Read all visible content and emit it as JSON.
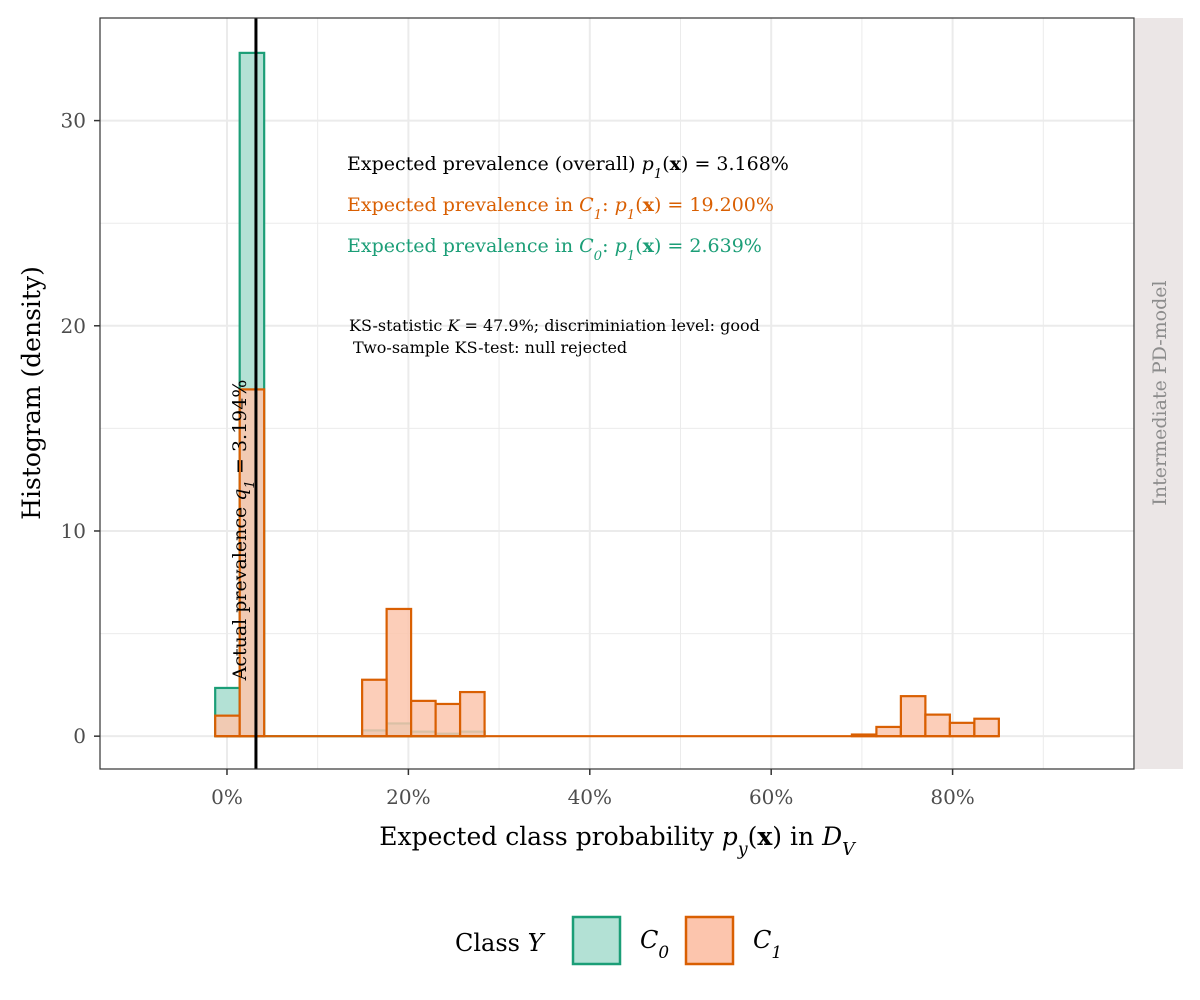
{
  "chart_data": {
    "type": "bar",
    "xlabel": "Expected class probability p_y(x) in D_V",
    "ylabel": "Histogram (density)",
    "xlim": [
      -0.14,
      1.0
    ],
    "ylim": [
      -1.6,
      35.0
    ],
    "x_ticks": [
      0,
      0.2,
      0.4,
      0.6,
      0.8
    ],
    "x_tick_labels": [
      "0%",
      "20%",
      "40%",
      "60%",
      "80%"
    ],
    "y_ticks": [
      0,
      10,
      20,
      30
    ],
    "y_tick_labels": [
      "0",
      "10",
      "20",
      "30"
    ],
    "grid": true,
    "legend_position": "bottom",
    "legend_title": "Class Y",
    "bin_width": 0.027,
    "series": [
      {
        "name": "C_0",
        "color": "#1b9e77",
        "fill": "#b3e1d5",
        "bins": [
          {
            "x0": -0.013,
            "x1": 0.014,
            "value": 2.35
          },
          {
            "x0": 0.014,
            "x1": 0.041,
            "value": 33.3
          },
          {
            "x0": 0.149,
            "x1": 0.176,
            "value": 0.28
          },
          {
            "x0": 0.176,
            "x1": 0.203,
            "value": 0.62
          },
          {
            "x0": 0.203,
            "x1": 0.23,
            "value": 0.22
          },
          {
            "x0": 0.23,
            "x1": 0.257,
            "value": 0.12
          },
          {
            "x0": 0.257,
            "x1": 0.284,
            "value": 0.22
          }
        ]
      },
      {
        "name": "C_1",
        "color": "#d95f02",
        "fill": "#fcc5ad",
        "bins": [
          {
            "x0": -0.013,
            "x1": 0.014,
            "value": 1.0
          },
          {
            "x0": 0.014,
            "x1": 0.041,
            "value": 16.9
          },
          {
            "x0": 0.149,
            "x1": 0.176,
            "value": 2.75
          },
          {
            "x0": 0.176,
            "x1": 0.203,
            "value": 6.2
          },
          {
            "x0": 0.203,
            "x1": 0.23,
            "value": 1.72
          },
          {
            "x0": 0.23,
            "x1": 0.257,
            "value": 1.57
          },
          {
            "x0": 0.257,
            "x1": 0.284,
            "value": 2.15
          },
          {
            "x0": 0.689,
            "x1": 0.716,
            "value": 0.08
          },
          {
            "x0": 0.716,
            "x1": 0.743,
            "value": 0.45
          },
          {
            "x0": 0.743,
            "x1": 0.77,
            "value": 1.95
          },
          {
            "x0": 0.77,
            "x1": 0.797,
            "value": 1.05
          },
          {
            "x0": 0.797,
            "x1": 0.824,
            "value": 0.65
          },
          {
            "x0": 0.824,
            "x1": 0.851,
            "value": 0.85
          }
        ]
      }
    ],
    "reference_line": {
      "x": 0.03194,
      "label": "Actual prevalence q_1 = 3.194%"
    },
    "annotations": [
      {
        "text": "Expected prevalence (overall) p_1(x) = 3.168%",
        "color": "#000000"
      },
      {
        "text": "Expected prevalence in C_1: p_1(x) = 19.200%",
        "color": "#d95f02"
      },
      {
        "text": "Expected prevalence in C_0: p_1(x) = 2.639%",
        "color": "#1b9e77"
      },
      {
        "text": "KS-statistic K = 47.9%; discriminiation level: good",
        "color": "#000000"
      },
      {
        "text": "Two-sample KS-test: null rejected",
        "color": "#000000"
      }
    ],
    "facet_label": "Intermediate PD-model"
  }
}
